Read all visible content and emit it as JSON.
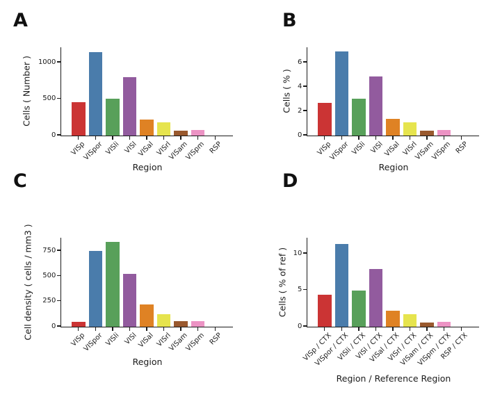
{
  "figure": {
    "background": "#ffffff",
    "text_color": "#1a1a1a",
    "axis_color": "#1a1a1a"
  },
  "palette": [
    "#cb3434",
    "#4a7cab",
    "#58a05a",
    "#925b9e",
    "#df8224",
    "#e6e44e",
    "#99592e",
    "#ec93c4",
    "#999999"
  ],
  "chart_data": [
    {
      "panel": "A",
      "type": "bar",
      "title": "",
      "xlabel": "Region",
      "ylabel": "Cells ( Number )",
      "categories": [
        "VISp",
        "VISpor",
        "VISli",
        "VISl",
        "VISal",
        "VISrl",
        "VISam",
        "VISpm",
        "RSP"
      ],
      "values": [
        450,
        1135,
        500,
        800,
        220,
        175,
        65,
        75,
        0
      ],
      "yticks": [
        0,
        500,
        1000
      ],
      "ylim": [
        0,
        1200
      ],
      "legend": "none",
      "grid": false
    },
    {
      "panel": "B",
      "type": "bar",
      "title": "",
      "xlabel": "Region",
      "ylabel": "Cells ( % )",
      "categories": [
        "VISp",
        "VISpor",
        "VISli",
        "VISl",
        "VISal",
        "VISrl",
        "VISam",
        "VISpm",
        "RSP"
      ],
      "values": [
        2.65,
        6.9,
        3.0,
        4.85,
        1.35,
        1.05,
        0.4,
        0.45,
        0
      ],
      "yticks": [
        0,
        2,
        4,
        6
      ],
      "ylim": [
        0,
        7.2
      ],
      "legend": "none",
      "grid": false
    },
    {
      "panel": "C",
      "type": "bar",
      "title": "",
      "xlabel": "Region",
      "ylabel": "Cell density ( cells / mm3 )",
      "categories": [
        "VISp",
        "VISpor",
        "VISli",
        "VISl",
        "VISal",
        "VISrl",
        "VISam",
        "VISpm",
        "RSP"
      ],
      "values": [
        45,
        750,
        835,
        520,
        215,
        120,
        50,
        50,
        0
      ],
      "yticks": [
        0,
        250,
        500,
        750
      ],
      "ylim": [
        0,
        875
      ],
      "legend": "none",
      "grid": false
    },
    {
      "panel": "D",
      "type": "bar",
      "title": "",
      "xlabel": "Region / Reference Region",
      "ylabel": "Cells ( % of ref )",
      "categories": [
        "VISp / CTX",
        "VISpor / CTX",
        "VISli / CTX",
        "VISl / CTX",
        "VISal / CTX",
        "VISrl / CTX",
        "VISam / CTX",
        "VISpm / CTX",
        "RSP / CTX"
      ],
      "values": [
        4.3,
        11.3,
        4.95,
        7.85,
        2.15,
        1.65,
        0.5,
        0.6,
        0
      ],
      "yticks": [
        0,
        5,
        10
      ],
      "ylim": [
        0,
        12.1
      ],
      "legend": "none",
      "grid": false
    }
  ]
}
